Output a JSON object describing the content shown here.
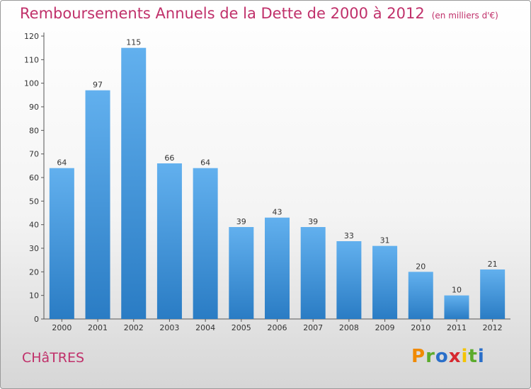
{
  "header": {
    "title": "Remboursements Annuels de la Dette de 2000 à 2012",
    "unit": "(en milliers d'€)"
  },
  "footer": {
    "place": "CHâTRES",
    "logo": "Proxiti",
    "logo_colors": [
      "#f08a00",
      "#5bab2c",
      "#2a6fc9",
      "#d6282f",
      "#f4c400",
      "#5bab2c",
      "#2a6fc9"
    ]
  },
  "chart_data": {
    "type": "bar",
    "categories": [
      "2000",
      "2001",
      "2002",
      "2003",
      "2004",
      "2005",
      "2006",
      "2007",
      "2008",
      "2009",
      "2010",
      "2011",
      "2012"
    ],
    "values": [
      64,
      97,
      115,
      66,
      64,
      39,
      43,
      39,
      33,
      31,
      20,
      10,
      21
    ],
    "ylim": [
      0,
      120
    ],
    "yticks": [
      0,
      10,
      20,
      30,
      40,
      50,
      60,
      70,
      80,
      90,
      100,
      110,
      120
    ],
    "grid": false,
    "bar_color_top": "#62b0ee",
    "bar_color_bottom": "#2a7cc4"
  }
}
